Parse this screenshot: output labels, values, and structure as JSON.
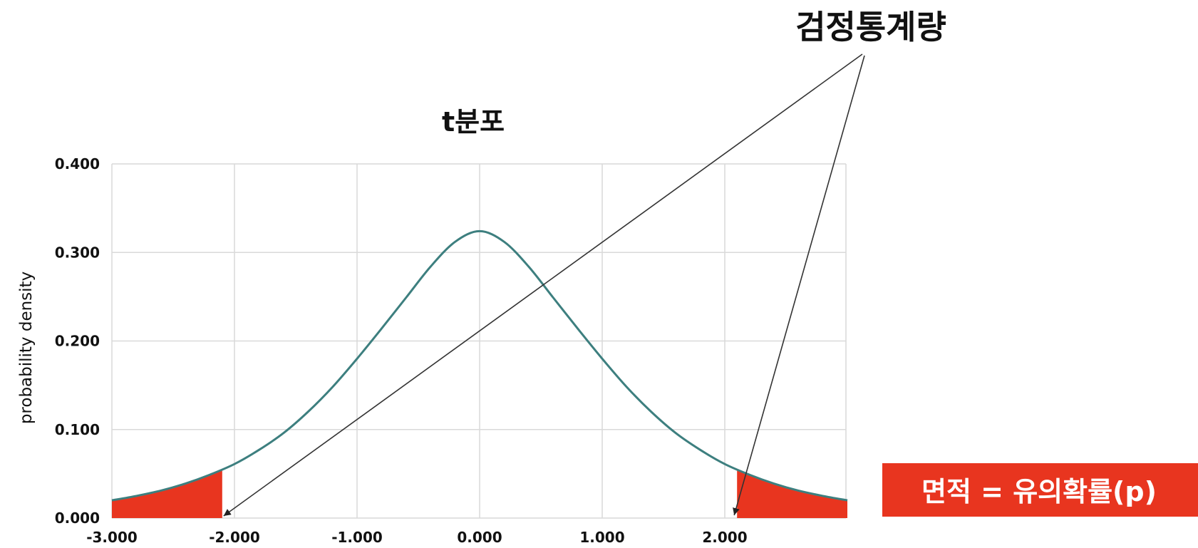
{
  "chart_data": {
    "type": "line",
    "title": "t분포",
    "xlabel": "",
    "ylabel": "probability density",
    "xlim": [
      -3.0,
      3.0
    ],
    "ylim": [
      0.0,
      0.4
    ],
    "x_ticks": [
      "-3.000",
      "-2.000",
      "-1.000",
      "0.000",
      "1.000",
      "2.000"
    ],
    "y_ticks": [
      "0.000",
      "0.100",
      "0.200",
      "0.300",
      "0.400"
    ],
    "grid": true,
    "series": [
      {
        "x": [
          -3.0,
          -2.8,
          -2.6,
          -2.4,
          -2.2,
          -2.0,
          -1.8,
          -1.6,
          -1.4,
          -1.2,
          -1.0,
          -0.8,
          -0.6,
          -0.4,
          -0.2,
          0.0,
          0.2,
          0.4,
          0.6,
          0.8,
          1.0,
          1.2,
          1.4,
          1.6,
          1.8,
          2.0,
          2.2,
          2.4,
          2.6,
          2.8,
          3.0
        ],
        "values": [
          0.02,
          0.025,
          0.031,
          0.039,
          0.049,
          0.061,
          0.077,
          0.096,
          0.12,
          0.148,
          0.18,
          0.214,
          0.249,
          0.284,
          0.312,
          0.324,
          0.312,
          0.284,
          0.249,
          0.214,
          0.18,
          0.148,
          0.12,
          0.096,
          0.077,
          0.061,
          0.049,
          0.039,
          0.031,
          0.025,
          0.02
        ]
      }
    ],
    "shaded_regions": [
      [
        -3.0,
        -2.1
      ],
      [
        2.1,
        3.0
      ]
    ],
    "annotations": {
      "test_statistic_label": "검정통계량",
      "area_label": "면적 = 유의확률(p)",
      "critical_values": [
        -2.1,
        2.1
      ]
    },
    "colors": {
      "curve": "#3d7f7f",
      "shade": "#e8351f",
      "grid": "#d9d9d9",
      "area_box": "#e8351f",
      "arrow": "#333333"
    }
  }
}
